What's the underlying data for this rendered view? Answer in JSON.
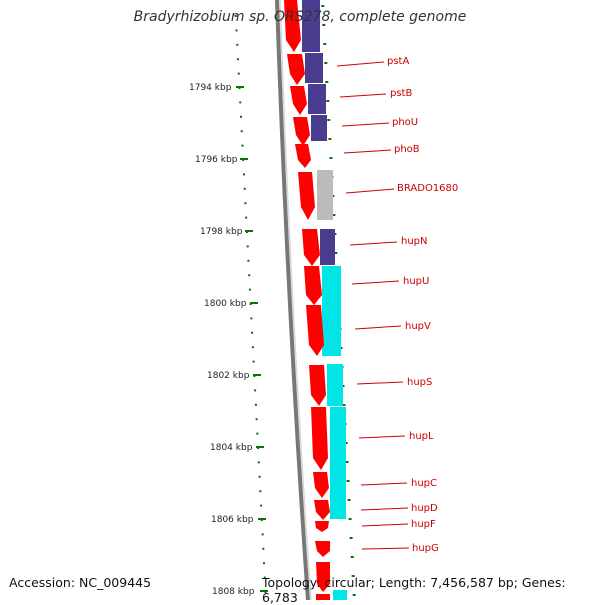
{
  "header": {
    "title": "Bradyrhizobium sp. ORS278, complete genome"
  },
  "footer": {
    "accession": "Accession: NC_009445",
    "topology": "Topology: circular; Length: 7,456,587 bp; Genes: 6,783"
  },
  "ruler": {
    "unit": "kbp",
    "labels": [
      "1794 kbp",
      "1796 kbp",
      "1798 kbp",
      "1800 kbp",
      "1802 kbp",
      "1804 kbp",
      "1806 kbp",
      "1808 kbp"
    ]
  },
  "genes": [
    {
      "name": "pstA",
      "color": "#4a3d8f"
    },
    {
      "name": "pstB",
      "color": "#4a3d8f"
    },
    {
      "name": "phoU",
      "color": "#4a3d8f"
    },
    {
      "name": "phoB",
      "color": ""
    },
    {
      "name": "BRADO1680",
      "color": "#bbbbbb"
    },
    {
      "name": "hupN",
      "color": "#4a3d8f"
    },
    {
      "name": "hupU",
      "color": "#00e6e6"
    },
    {
      "name": "hupV",
      "color": "#00e6e6"
    },
    {
      "name": "hupS",
      "color": "#00e6e6"
    },
    {
      "name": "hupL",
      "color": "#00e6e6"
    },
    {
      "name": "hupC",
      "color": "#00e6e6"
    },
    {
      "name": "hupD",
      "color": "#00e6e6"
    },
    {
      "name": "hupF",
      "color": ""
    },
    {
      "name": "hupG",
      "color": ""
    }
  ],
  "colors": {
    "cds": "#ff0000",
    "backbone": "#777777",
    "ticks": "#007700",
    "gene_label": "#cc0000"
  }
}
